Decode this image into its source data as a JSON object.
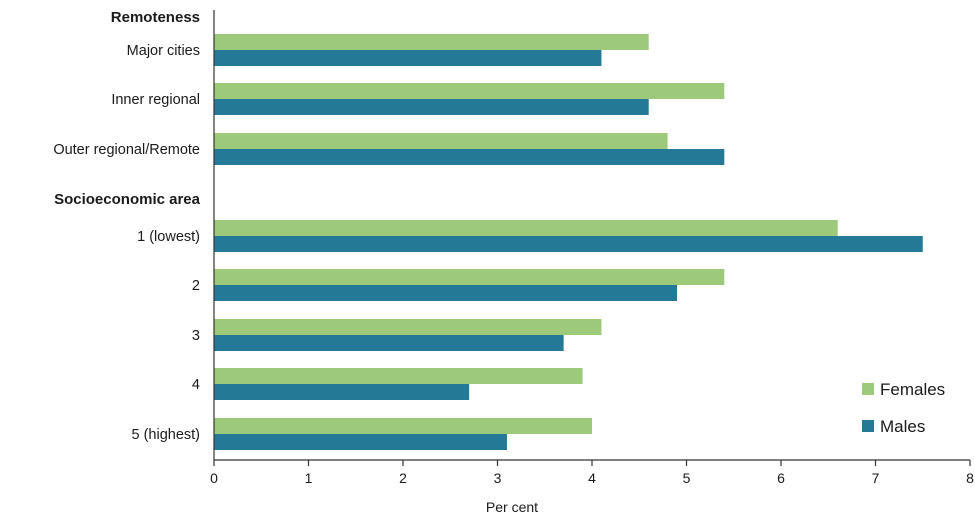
{
  "chart_data": {
    "type": "bar",
    "orientation": "horizontal",
    "xlabel": "Per cent",
    "xlim": [
      0,
      8
    ],
    "xticks": [
      "0",
      "1",
      "2",
      "3",
      "4",
      "5",
      "6",
      "7",
      "8"
    ],
    "grid": false,
    "legend_position": "bottom-right",
    "groups": [
      {
        "heading": "Remoteness",
        "categories": [
          "Major cities",
          "Inner regional",
          "Outer regional/Remote"
        ]
      },
      {
        "heading": "Socioeconomic area",
        "categories": [
          "1 (lowest)",
          "2",
          "3",
          "4",
          "5 (highest)"
        ]
      }
    ],
    "categories": [
      "Major cities",
      "Inner regional",
      "Outer regional/Remote",
      "1 (lowest)",
      "2",
      "3",
      "4",
      "5 (highest)"
    ],
    "series": [
      {
        "name": "Females",
        "color": "#9dc97a",
        "values": [
          4.6,
          5.4,
          4.8,
          6.6,
          5.4,
          4.1,
          3.9,
          4.0
        ]
      },
      {
        "name": "Males",
        "color": "#247a96",
        "values": [
          4.1,
          4.6,
          5.4,
          7.5,
          4.9,
          3.7,
          2.7,
          3.1
        ]
      }
    ]
  }
}
